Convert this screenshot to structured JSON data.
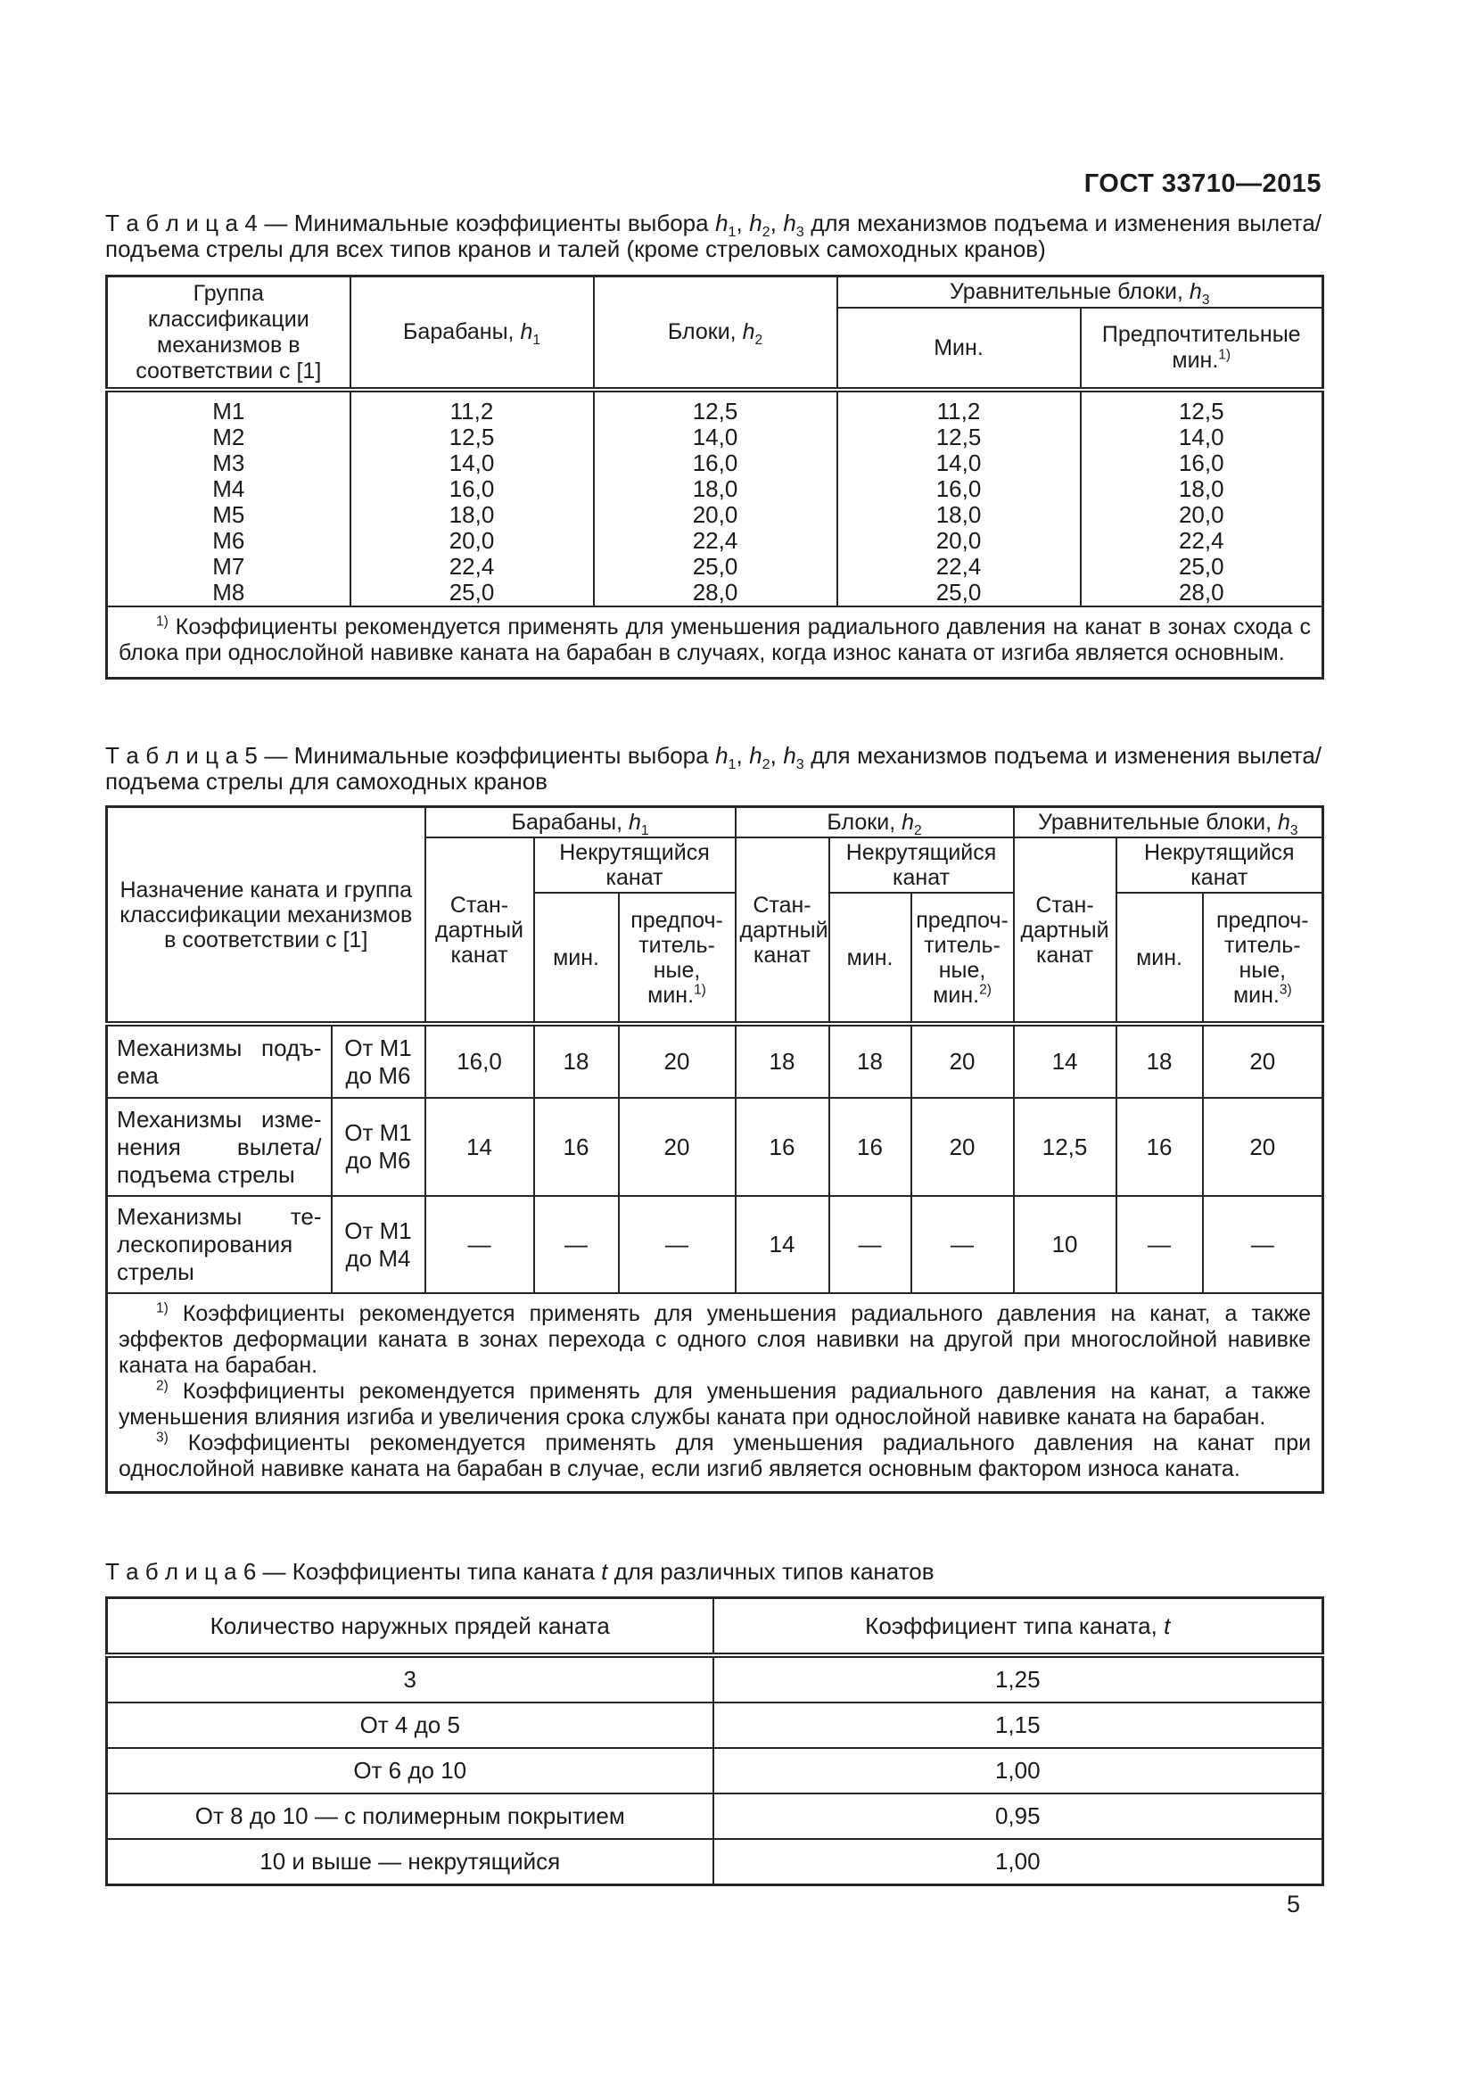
{
  "page": {
    "standard": "ГОСТ 33710—2015",
    "number": "5"
  },
  "table4": {
    "caption_line1_html": "Т а б л и ц а  4 — Минимальные коэффициенты выбора <i>h</i><sub>1</sub>, <i>h</i><sub>2</sub>, <i>h</i><sub>3</sub> для механизмов подъема и изменения вылета/",
    "caption_line2": "подъема стрелы для всех типов кранов и талей (кроме стреловых самоходных кранов)",
    "header": {
      "col1": "Группа классификации механизмов в соответствии с [1]",
      "col2_html": "Барабаны, <i>h</i><sub>1</sub>",
      "col3_html": "Блоки, <i>h</i><sub>2</sub>",
      "group_html": "Уравнительные блоки, <i>h</i><sub>3</sub>",
      "sub_min": "Мин.",
      "sub_pref_html": "Предпочтительные мин.<sup>1)</sup>"
    },
    "rows": [
      [
        "М1",
        "11,2",
        "12,5",
        "11,2",
        "12,5"
      ],
      [
        "М2",
        "12,5",
        "14,0",
        "12,5",
        "14,0"
      ],
      [
        "М3",
        "14,0",
        "16,0",
        "14,0",
        "16,0"
      ],
      [
        "М4",
        "16,0",
        "18,0",
        "16,0",
        "18,0"
      ],
      [
        "М5",
        "18,0",
        "20,0",
        "18,0",
        "20,0"
      ],
      [
        "М6",
        "20,0",
        "22,4",
        "20,0",
        "22,4"
      ],
      [
        "М7",
        "22,4",
        "25,0",
        "22,4",
        "25,0"
      ],
      [
        "М8",
        "25,0",
        "28,0",
        "25,0",
        "28,0"
      ]
    ],
    "footnote_html": "<sup>1)</sup> Коэффициенты рекомендуется применять для уменьшения радиального давления на канат в зонах схода с блока при однослойной навивке каната на барабан в случаях, когда износ каната от изгиба является основным."
  },
  "table5": {
    "caption_line1_html": "Т а б л и ц а  5 — Минимальные коэффициенты выбора <i>h</i><sub>1</sub>, <i>h</i><sub>2</sub>, <i>h</i><sub>3</sub> для механизмов подъема и изменения вылета/",
    "caption_line2": "подъема стрелы для самоходных кранов",
    "header": {
      "col1": "Назначение каната и группа классификации механизмов в соответствии с [1]",
      "group1_html": "Барабаны, <i>h</i><sub>1</sub>",
      "group2_html": "Блоки, <i>h</i><sub>2</sub>",
      "group3_html": "Уравнительные блоки, <i>h</i><sub>3</sub>",
      "std_html": "Стан-<br>дартный<br>канат",
      "nonrot_html": "Некрутящийся<br>канат",
      "min": "мин.",
      "pref1_html": "предпоч-<br>титель-<br>ные, мин.<sup>1)</sup>",
      "pref2_html": "предпоч-<br>титель-<br>ные,<br>мин.<sup>2)</sup>",
      "pref3_html": "предпоч-<br>титель-<br>ные,<br>мин.<sup>3)</sup>"
    },
    "rows": [
      {
        "label": [
          "Механизмы подъ-",
          "ема"
        ],
        "class_html": "От М1<br>до М6",
        "values": [
          "16,0",
          "18",
          "20",
          "18",
          "18",
          "20",
          "14",
          "18",
          "20"
        ]
      },
      {
        "label": [
          "Механизмы изме-",
          "нения вылета/",
          "подъема стрелы"
        ],
        "class_html": "От М1<br>до М6",
        "values": [
          "14",
          "16",
          "20",
          "16",
          "16",
          "20",
          "12,5",
          "16",
          "20"
        ]
      },
      {
        "label": [
          "Механизмы те-",
          "лескопирования",
          "стрелы"
        ],
        "class_html": "От М1<br>до М4",
        "values": [
          "—",
          "—",
          "—",
          "14",
          "—",
          "—",
          "10",
          "—",
          "—"
        ]
      }
    ],
    "footnote1_html": "<sup>1)</sup> Коэффициенты рекомендуется применять для уменьшения радиального давления на канат, а также эффектов деформации каната в зонах перехода с одного слоя навивки на другой при многослойной навивке каната на барабан.",
    "footnote2_html": "<sup>2)</sup> Коэффициенты рекомендуется применять для уменьшения радиального давления на канат, а также уменьшения влияния изгиба и увеличения срока службы каната при однослойной навивке каната на барабан.",
    "footnote3_html": "<sup>3)</sup> Коэффициенты рекомендуется применять для уменьшения радиального давления на канат при однослойной навивке каната на барабан в случае, если изгиб является основным фактором износа каната."
  },
  "table6": {
    "caption_html": "Т а б л и ц а  6 — Коэффициенты типа каната <i>t</i> для различных типов канатов",
    "header": {
      "col1": "Количество наружных прядей каната",
      "col2_html": "Коэффициент типа каната, <i>t</i>"
    },
    "rows": [
      [
        "3",
        "1,25"
      ],
      [
        "От 4 до 5",
        "1,15"
      ],
      [
        "От 6 до 10",
        "1,00"
      ],
      [
        "От 8 до 10 — с полимерным покрытием",
        "0,95"
      ],
      [
        "10 и выше — некрутящийся",
        "1,00"
      ]
    ]
  }
}
